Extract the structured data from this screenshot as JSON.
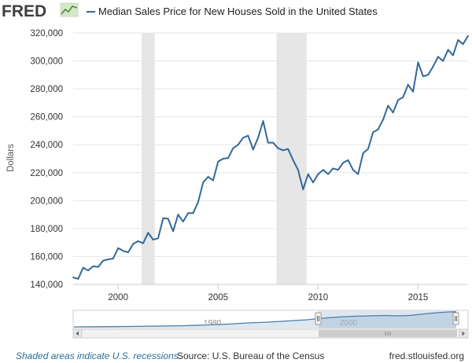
{
  "logo": {
    "text": "FRED",
    "graph_icon": "fred-graph-icon"
  },
  "legend": {
    "label": "Median Sales Price for New Houses Sold in the United States"
  },
  "footer": {
    "recession_note": "Shaded areas indicate U.S. recessions",
    "source": "Source: U.S. Bureau of the Census",
    "site": "fred.stlouisfed.org"
  },
  "navigator": {
    "year_label_left": "1980",
    "year_label_right": "2000"
  },
  "colors": {
    "series": "#336999",
    "recession": "#e6e6e6",
    "navigator_mask": "#dde7f1",
    "navigator_series": "#4a7eab",
    "footer_note": "#2b6e99"
  },
  "chart_data": {
    "type": "line",
    "title": "",
    "xlabel": "",
    "ylabel": "Dollars",
    "x_ticks": [
      "2000",
      "2005",
      "2010",
      "2015"
    ],
    "y_ticks": [
      "140,000",
      "160,000",
      "180,000",
      "200,000",
      "220,000",
      "240,000",
      "260,000",
      "280,000",
      "300,000",
      "320,000"
    ],
    "xlim": [
      1997.75,
      2017.5
    ],
    "ylim": [
      140000,
      320000
    ],
    "grid": true,
    "legend_position": "top",
    "recessions": [
      {
        "start": 2001.17,
        "end": 2001.83
      },
      {
        "start": 2007.92,
        "end": 2009.42
      }
    ],
    "series": [
      {
        "name": "Median Sales Price for New Houses Sold in the United States",
        "x": [
          1997.75,
          1998.0,
          1998.25,
          1998.5,
          1998.75,
          1999.0,
          1999.25,
          1999.5,
          1999.75,
          2000.0,
          2000.25,
          2000.5,
          2000.75,
          2001.0,
          2001.25,
          2001.5,
          2001.75,
          2002.0,
          2002.25,
          2002.5,
          2002.75,
          2003.0,
          2003.25,
          2003.5,
          2003.75,
          2004.0,
          2004.25,
          2004.5,
          2004.75,
          2005.0,
          2005.25,
          2005.5,
          2005.75,
          2006.0,
          2006.25,
          2006.5,
          2006.75,
          2007.0,
          2007.25,
          2007.5,
          2007.75,
          2008.0,
          2008.25,
          2008.5,
          2008.75,
          2009.0,
          2009.25,
          2009.5,
          2009.75,
          2010.0,
          2010.25,
          2010.5,
          2010.75,
          2011.0,
          2011.25,
          2011.5,
          2011.75,
          2012.0,
          2012.25,
          2012.5,
          2012.75,
          2013.0,
          2013.25,
          2013.5,
          2013.75,
          2014.0,
          2014.25,
          2014.5,
          2014.75,
          2015.0,
          2015.25,
          2015.5,
          2015.75,
          2016.0,
          2016.25,
          2016.5,
          2016.75,
          2017.0,
          2017.25,
          2017.5
        ],
        "values": [
          145000,
          144000,
          152000,
          150000,
          153000,
          152500,
          157000,
          158000,
          158500,
          166000,
          164000,
          163000,
          169000,
          171000,
          169500,
          177000,
          172000,
          173000,
          187500,
          187000,
          178000,
          190000,
          185000,
          191000,
          191000,
          199000,
          213000,
          217000,
          214500,
          228000,
          230000,
          230500,
          237500,
          240000,
          245000,
          246500,
          236500,
          245000,
          257000,
          241500,
          241500,
          237500,
          236000,
          237000,
          229000,
          222000,
          208000,
          219000,
          213000,
          219000,
          222000,
          219000,
          223000,
          222000,
          227000,
          229000,
          222000,
          219000,
          234000,
          237000,
          249000,
          251000,
          258000,
          268000,
          263000,
          272000,
          274000,
          283000,
          278000,
          299000,
          289000,
          290000,
          296000,
          303000,
          300000,
          308000,
          304000,
          315000,
          312000,
          318000
        ]
      }
    ]
  }
}
